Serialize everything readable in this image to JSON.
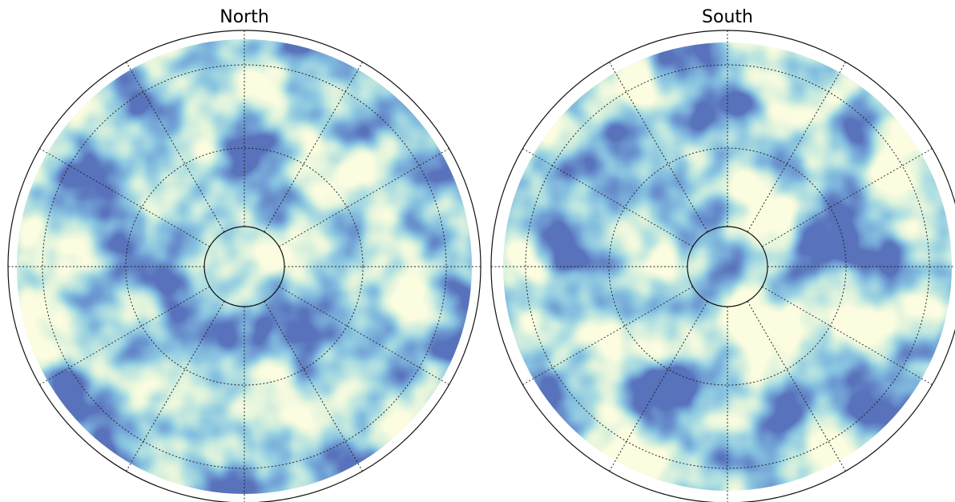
{
  "panels": [
    {
      "title": "North"
    },
    {
      "title": "South"
    }
  ]
}
